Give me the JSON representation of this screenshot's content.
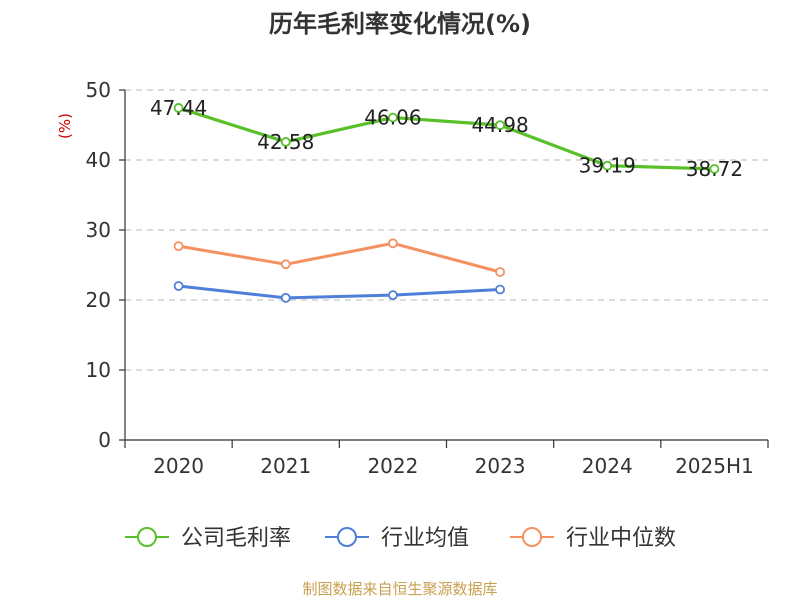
{
  "chart_data": {
    "type": "line",
    "title": "历年毛利率变化情况(%)",
    "ylabel": "(%)",
    "categories": [
      "2020",
      "2021",
      "2022",
      "2023",
      "2024",
      "2025H1"
    ],
    "ylim": [
      0,
      50
    ],
    "yticks": [
      "0",
      "10",
      "20",
      "30",
      "40",
      "50"
    ],
    "grid": true,
    "legend_position": "bottom",
    "series": [
      {
        "name": "公司毛利率",
        "color": "#5ac02a",
        "values": [
          47.44,
          42.58,
          46.06,
          44.98,
          39.19,
          38.72
        ],
        "labels": [
          "47.44",
          "42.58",
          "46.06",
          "44.98",
          "39.19",
          "38.72"
        ]
      },
      {
        "name": "行业均值",
        "color": "#4f7fd8",
        "values": [
          22.0,
          20.3,
          20.7,
          21.5,
          null,
          null
        ]
      },
      {
        "name": "行业中位数",
        "color": "#f59060",
        "values": [
          27.7,
          25.1,
          28.1,
          24.0,
          null,
          null
        ]
      }
    ],
    "source": "制图数据来自恒生聚源数据库"
  }
}
